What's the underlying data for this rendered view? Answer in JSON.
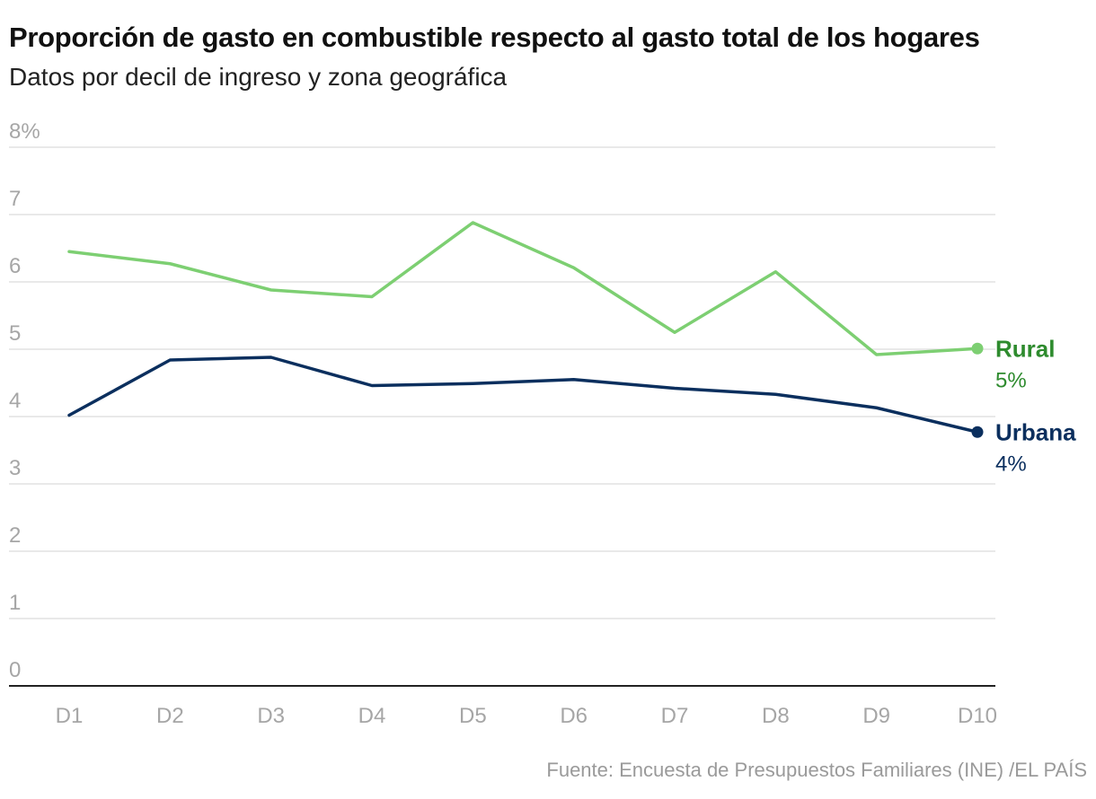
{
  "title": "Proporción de gasto en combustible respecto al gasto total de los hogares",
  "subtitle": "Datos por decil de ingreso y zona geográfica",
  "source": "Fuente: Encuesta de Presupuestos Familiares (INE) /EL PAÍS",
  "chart_data": {
    "type": "line",
    "title": "Proporción de gasto en combustible respecto al gasto total de los hogares",
    "subtitle": "Datos por decil de ingreso y zona geográfica",
    "xlabel": "",
    "ylabel": "",
    "categories": [
      "D1",
      "D2",
      "D3",
      "D4",
      "D5",
      "D6",
      "D7",
      "D8",
      "D9",
      "D10"
    ],
    "ylim": [
      0,
      8
    ],
    "yticks": [
      0,
      1,
      2,
      3,
      4,
      5,
      6,
      7,
      8
    ],
    "ytick_labels": [
      "0",
      "1",
      "2",
      "3",
      "4",
      "5",
      "6",
      "7",
      "8%"
    ],
    "grid": true,
    "series": [
      {
        "name": "Rural",
        "end_label": "5%",
        "color": "#7dcf72",
        "label_color": "#2e8b2e",
        "values": [
          6.45,
          6.27,
          5.88,
          5.78,
          6.88,
          6.21,
          5.25,
          6.15,
          4.92,
          5.01
        ]
      },
      {
        "name": "Urbana",
        "end_label": "4%",
        "color": "#0b2f5e",
        "label_color": "#0b2f5e",
        "values": [
          4.02,
          4.84,
          4.88,
          4.46,
          4.49,
          4.55,
          4.42,
          4.33,
          4.13,
          3.77
        ]
      }
    ]
  }
}
